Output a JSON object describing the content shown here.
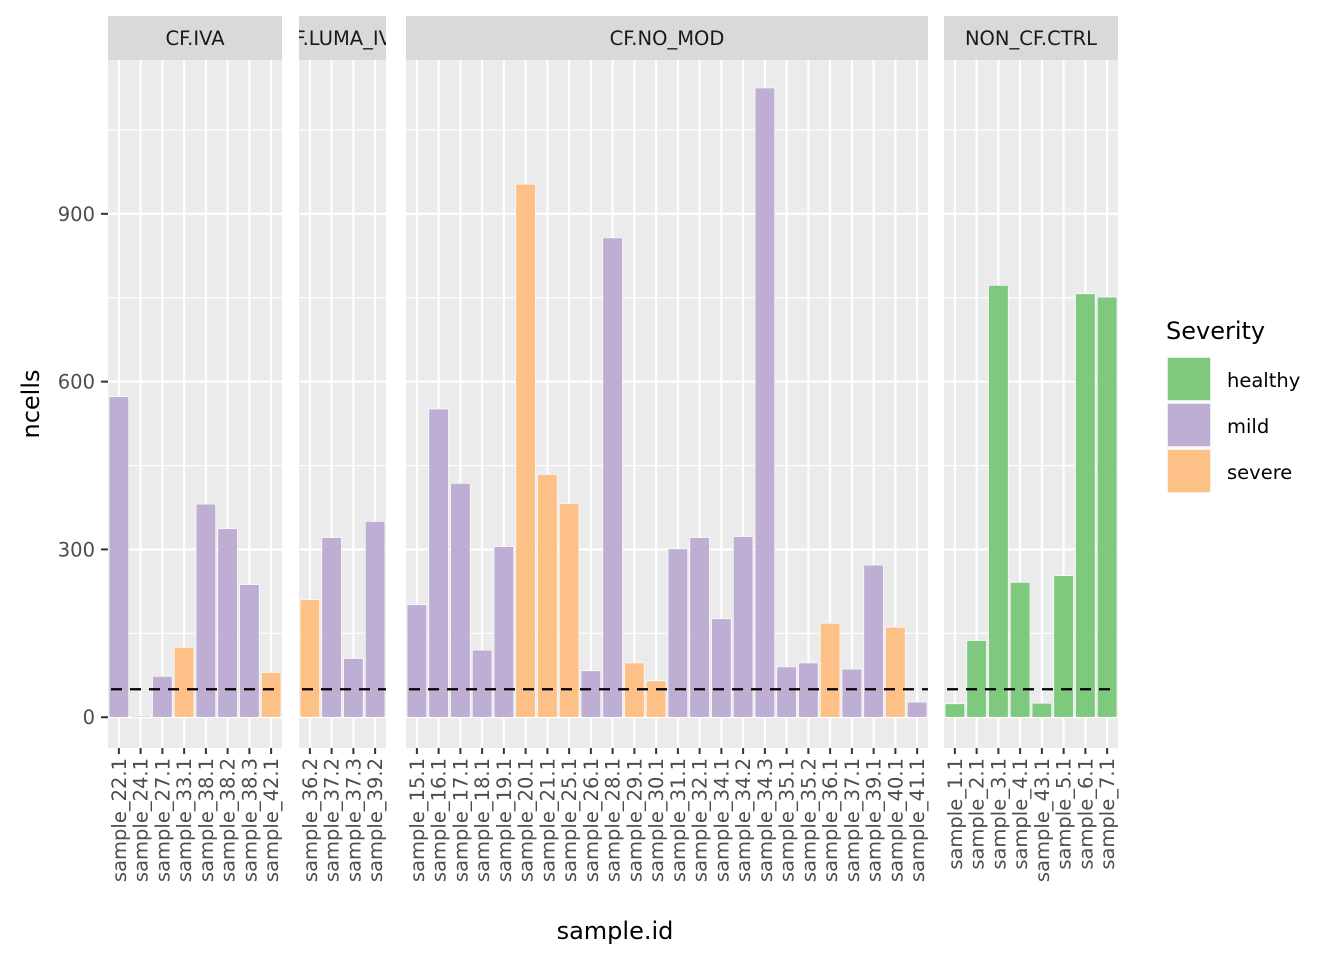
{
  "chart_data": {
    "type": "bar",
    "xlabel": "sample.id",
    "ylabel": "ncells",
    "y_ticks": [
      0,
      300,
      600,
      900
    ],
    "ylim": [
      -55,
      1175
    ],
    "threshold": 50,
    "legend": {
      "title": "Severity",
      "placement": "right",
      "entries": [
        {
          "label": "healthy",
          "color": "#7FC97F"
        },
        {
          "label": "mild",
          "color": "#BEAED4"
        },
        {
          "label": "severe",
          "color": "#FDC086"
        }
      ]
    },
    "facets": [
      {
        "label": "CF.IVA",
        "categories": [
          "sample_22.1",
          "sample_24.1",
          "sample_27.1",
          "sample_33.1",
          "sample_38.1",
          "sample_38.2",
          "sample_38.3",
          "sample_42.1"
        ],
        "values": [
          573,
          2,
          73,
          125,
          381,
          337,
          237,
          80
        ],
        "severity": [
          "mild",
          "mild",
          "mild",
          "severe",
          "mild",
          "mild",
          "mild",
          "severe"
        ]
      },
      {
        "label": "CF.LUMA_IVA",
        "categories": [
          "sample_36.2",
          "sample_37.2",
          "sample_37.3",
          "sample_39.2"
        ],
        "values": [
          210,
          321,
          105,
          350
        ],
        "severity": [
          "severe",
          "mild",
          "mild",
          "mild"
        ]
      },
      {
        "label": "CF.NO_MOD",
        "categories": [
          "sample_15.1",
          "sample_16.1",
          "sample_17.1",
          "sample_18.1",
          "sample_19.1",
          "sample_20.1",
          "sample_21.1",
          "sample_25.1",
          "sample_26.1",
          "sample_28.1",
          "sample_29.1",
          "sample_30.1",
          "sample_31.1",
          "sample_32.1",
          "sample_34.1",
          "sample_34.2",
          "sample_34.3",
          "sample_35.1",
          "sample_35.2",
          "sample_36.1",
          "sample_37.1",
          "sample_39.1",
          "sample_40.1",
          "sample_41.1"
        ],
        "values": [
          201,
          551,
          418,
          120,
          305,
          953,
          434,
          382,
          83,
          857,
          97,
          65,
          301,
          321,
          176,
          323,
          1125,
          90,
          97,
          168,
          86,
          272,
          161,
          27
        ],
        "severity": [
          "mild",
          "mild",
          "mild",
          "mild",
          "mild",
          "severe",
          "severe",
          "severe",
          "mild",
          "mild",
          "severe",
          "severe",
          "mild",
          "mild",
          "mild",
          "mild",
          "mild",
          "mild",
          "mild",
          "severe",
          "mild",
          "mild",
          "severe",
          "mild"
        ]
      },
      {
        "label": "NON_CF.CTRL",
        "categories": [
          "sample_1.1",
          "sample_2.1",
          "sample_3.1",
          "sample_4.1",
          "sample_43.1",
          "sample_5.1",
          "sample_6.1",
          "sample_7.1"
        ],
        "values": [
          24,
          137,
          772,
          241,
          25,
          253,
          757,
          751
        ],
        "severity": [
          "healthy",
          "healthy",
          "healthy",
          "healthy",
          "healthy",
          "healthy",
          "healthy",
          "healthy"
        ]
      }
    ]
  }
}
